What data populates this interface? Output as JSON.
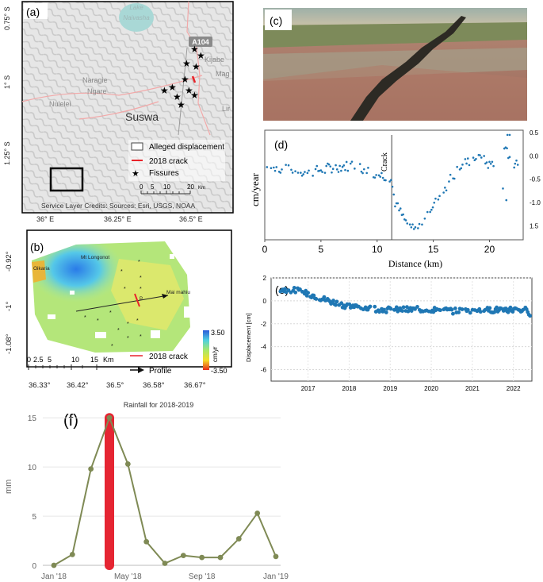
{
  "colors": {
    "crack": "#e8232a",
    "point_blue": "#1f77b4",
    "rain_line": "#7f8a55",
    "rain_bar": "#e52532"
  },
  "panel_a": {
    "label": "(a)",
    "lat_ticks": [
      "0.75° S",
      "1° S",
      "1.25° S"
    ],
    "lon_ticks": [
      "36° E",
      "36.25° E",
      "36.5° E"
    ],
    "places": {
      "lake": "Lake\nNaivasha",
      "road": "A104",
      "kijabe": "Kijabe",
      "narasha": "Naragie",
      "ngare": "Ngare",
      "nulelei": "Nulelei",
      "suswa": "Suswa",
      "mag": "Mag",
      "lir": "Lir"
    },
    "legend": [
      "Alleged displacement",
      "2018 crack",
      "Fissures"
    ],
    "scale_ticks": [
      "0",
      "5",
      "10",
      "20"
    ],
    "scale_unit": "Km",
    "credits": "Service Layer Credits: Sources: Esri, USGS, NOAA"
  },
  "panel_b": {
    "label": "(b)",
    "y_ticks": [
      "-0.92°",
      "-1°",
      "-1.08°"
    ],
    "x_ticks": [
      "36.33°",
      "36.42°",
      "36.5°",
      "36.58°",
      "36.67°"
    ],
    "places": {
      "longonot": "Mt Longonot",
      "olkaria": "Oikaria",
      "maimahiu": "Mai mahiu",
      "p": "P"
    },
    "colorbar": {
      "max": "3.50",
      "min": "-3.50",
      "unit": "cm/yr"
    },
    "scale_ticks": [
      "0",
      "2.5",
      "5",
      "10",
      "15"
    ],
    "scale_unit": "Km",
    "legend": [
      "2018 crack",
      "Profile"
    ]
  },
  "panel_c": {
    "label": "(c)"
  },
  "panel_d": {
    "label": "(d)",
    "ylabel": "cm/year",
    "xlabel": "Distance (km)",
    "crack_label": "Crack",
    "x_ticks": [
      "0",
      "5",
      "10",
      "15",
      "20"
    ],
    "y_ticks": [
      "0.5",
      "0.0",
      "-0.5",
      "-1.0",
      "1.5"
    ]
  },
  "panel_e": {
    "label": "(e)",
    "ylabel": "Displacement [cm]",
    "y_ticks": [
      "2",
      "0",
      "-2",
      "-4",
      "-6"
    ],
    "x_ticks": [
      "2017",
      "2018",
      "2019",
      "2020",
      "2021",
      "2022"
    ]
  },
  "panel_f": {
    "label": "(f)",
    "title": "Rainfall for 2018-2019",
    "ylabel": "mm",
    "y_ticks": [
      "0",
      "5",
      "10",
      "15"
    ],
    "x_ticks": [
      "Jan '18",
      "May '18",
      "Sep '18",
      "Jan '19"
    ]
  },
  "chart_data": [
    {
      "id": "d",
      "type": "scatter",
      "xlabel": "Distance (km)",
      "ylabel": "cm/year",
      "xlim": [
        0,
        23
      ],
      "ylim": [
        -1.8,
        0.55
      ],
      "crack_x": 11.3,
      "profile_anchors": [
        [
          0,
          -0.25
        ],
        [
          2,
          -0.3
        ],
        [
          4,
          -0.35
        ],
        [
          6,
          -0.25
        ],
        [
          8,
          -0.2
        ],
        [
          10,
          -0.4
        ],
        [
          11.2,
          -0.45
        ],
        [
          11.6,
          -1.0
        ],
        [
          12.5,
          -1.4
        ],
        [
          13.5,
          -1.6
        ],
        [
          14.5,
          -1.2
        ],
        [
          15.5,
          -0.9
        ],
        [
          16.5,
          -0.5
        ],
        [
          17.5,
          -0.2
        ],
        [
          19,
          0.0
        ],
        [
          20,
          -0.2
        ],
        [
          21.5,
          0.1
        ],
        [
          22.5,
          -0.2
        ]
      ]
    },
    {
      "id": "e",
      "type": "scatter",
      "ylabel": "Displacement [cm]",
      "xlim": [
        2016.1,
        2022.45
      ],
      "ylim": [
        -7,
        2
      ],
      "profile_anchors": [
        [
          2016.3,
          1.0
        ],
        [
          2016.7,
          0.9
        ],
        [
          2017.1,
          0.5
        ],
        [
          2017.5,
          0.0
        ],
        [
          2017.9,
          -0.4
        ],
        [
          2018.3,
          -0.6
        ],
        [
          2019.0,
          -0.8
        ],
        [
          2020.0,
          -0.75
        ],
        [
          2020.6,
          -0.9
        ],
        [
          2021.2,
          -0.85
        ],
        [
          2021.8,
          -0.75
        ],
        [
          2022.3,
          -0.8
        ],
        [
          2022.4,
          -1.3
        ]
      ]
    },
    {
      "id": "f",
      "type": "line",
      "title": "Rainfall for 2018-2019",
      "ylabel": "mm",
      "x": [
        "Jan '18",
        "Feb '18",
        "Mar '18",
        "Apr '18",
        "May '18",
        "Jun '18",
        "Jul '18",
        "Aug '18",
        "Sep '18",
        "Oct '18",
        "Nov '18",
        "Dec '18",
        "Jan '19"
      ],
      "values": [
        0,
        1.1,
        9.8,
        15.0,
        10.3,
        2.4,
        0.2,
        1.0,
        0.8,
        0.8,
        2.7,
        5.3,
        0.9
      ],
      "ylim": [
        0,
        15.5
      ],
      "highlight_index": 3
    }
  ]
}
